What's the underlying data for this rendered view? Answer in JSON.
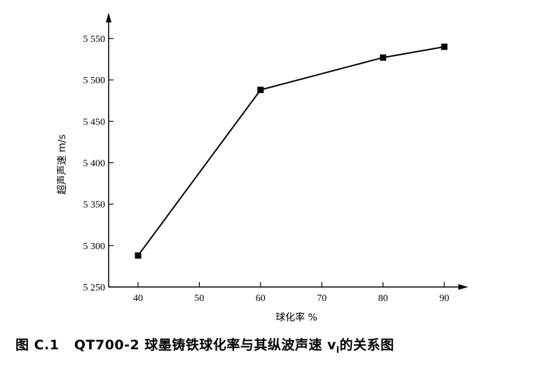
{
  "chart_data": {
    "type": "line",
    "xlabel": "球化率 %",
    "ylabel": "超声声速 m/s",
    "caption": {
      "fig_no": "图 C.1",
      "text": "QT700-2 球墨铸铁球化率与其纵波声速 v",
      "subscript": "l",
      "suffix": "的关系图"
    },
    "x": [
      40,
      60,
      80,
      90
    ],
    "series": [
      {
        "values": [
          5288,
          5488,
          5527,
          5540
        ]
      }
    ],
    "x_ticks": [
      40,
      50,
      60,
      70,
      80,
      90
    ],
    "x_tick_labels": [
      "40",
      "50",
      "60",
      "70",
      "80",
      "90"
    ],
    "y_ticks": [
      5250,
      5300,
      5350,
      5400,
      5450,
      5500,
      5550
    ],
    "y_tick_labels": [
      "5 250",
      "5 300",
      "5 350",
      "5 400",
      "5 450",
      "5 500",
      "5 550"
    ],
    "xlim": [
      35,
      95
    ],
    "ylim": [
      5250,
      5580
    ],
    "grid": false,
    "marker": "square",
    "line_color": "#000000"
  }
}
